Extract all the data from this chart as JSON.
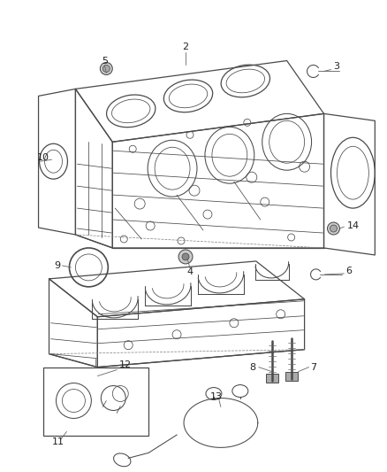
{
  "bg_color": "#ffffff",
  "line_color": "#4a4a4a",
  "label_color": "#222222",
  "fig_width": 4.38,
  "fig_height": 5.33,
  "dpi": 100
}
